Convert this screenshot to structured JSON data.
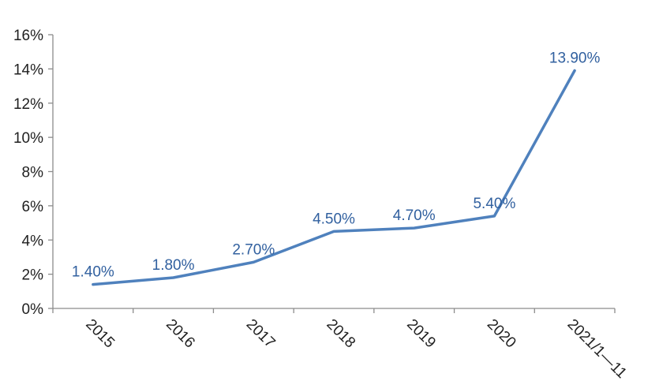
{
  "chart_data": {
    "type": "line",
    "title": "",
    "xlabel": "",
    "ylabel": "",
    "categories": [
      "2015",
      "2016",
      "2017",
      "2018",
      "2019",
      "2020",
      "2021/1—11"
    ],
    "values": [
      1.4,
      1.8,
      2.7,
      4.5,
      4.7,
      5.4,
      13.9
    ],
    "point_labels": [
      "1.40%",
      "1.80%",
      "2.70%",
      "4.50%",
      "4.70%",
      "5.40%",
      "13.90%"
    ],
    "ylim": [
      0,
      16
    ],
    "ytick_step": 2,
    "ytick_labels": [
      "0%",
      "2%",
      "4%",
      "6%",
      "8%",
      "10%",
      "12%",
      "14%",
      "16%"
    ],
    "grid": false,
    "legend_position": "none",
    "x_label_rotation_deg": 45,
    "colors": {
      "line": "#4F81BD",
      "data_label": "#31609F",
      "axis_line": "#8C8C8C",
      "tick_label": "#1F1F1F",
      "background": "#FFFFFF"
    }
  }
}
